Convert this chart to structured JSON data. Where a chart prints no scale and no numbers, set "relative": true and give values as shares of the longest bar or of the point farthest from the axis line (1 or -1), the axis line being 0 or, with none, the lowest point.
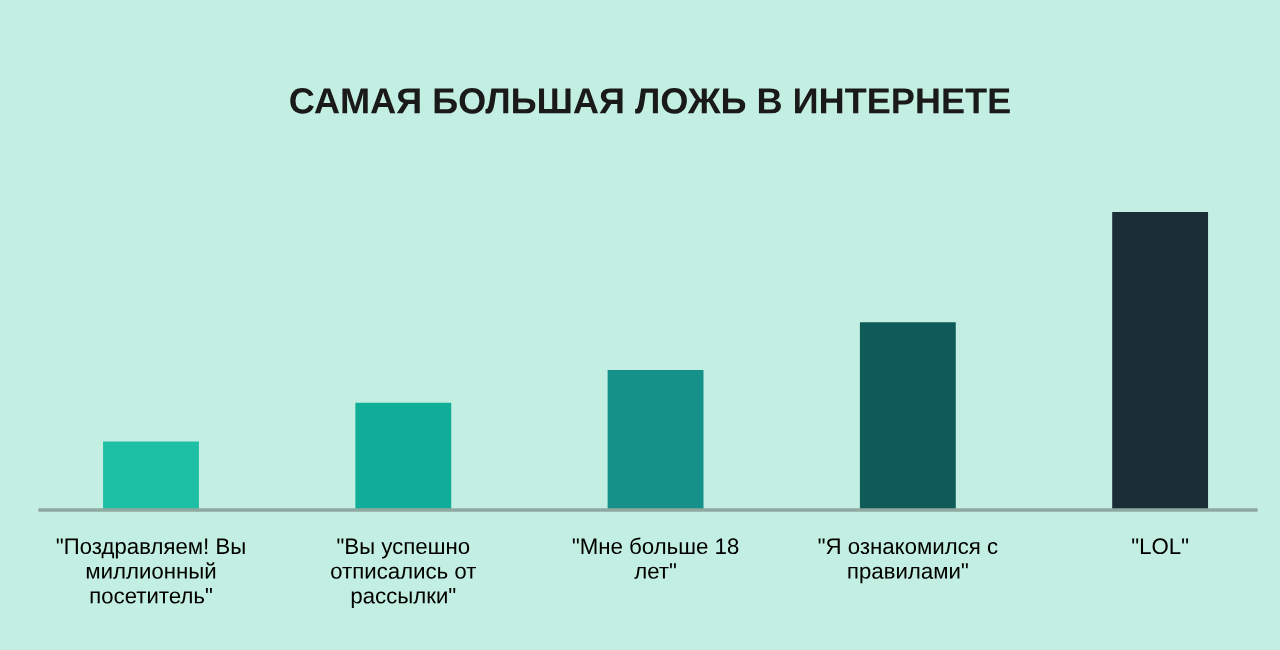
{
  "chart_data": {
    "type": "bar",
    "title": "САМАЯ БОЛЬШАЯ ЛОЖЬ В ИНТЕРНЕТЕ",
    "relative": true,
    "categories": [
      "\"Поздравляем! Вы миллионный посетитель\"",
      "\"Вы успешно отписались от рассылки\"",
      "\"Мне больше 18 лет\"",
      "\"Я ознакомился с правилами\"",
      "\"LOL\""
    ],
    "values": [
      0.23,
      0.36,
      0.47,
      0.63,
      1
    ],
    "colors": [
      "#1dbfa5",
      "#10ae98",
      "#15918a",
      "#0f5b5a",
      "#1b2e38"
    ],
    "grid": false,
    "legend": false
  }
}
